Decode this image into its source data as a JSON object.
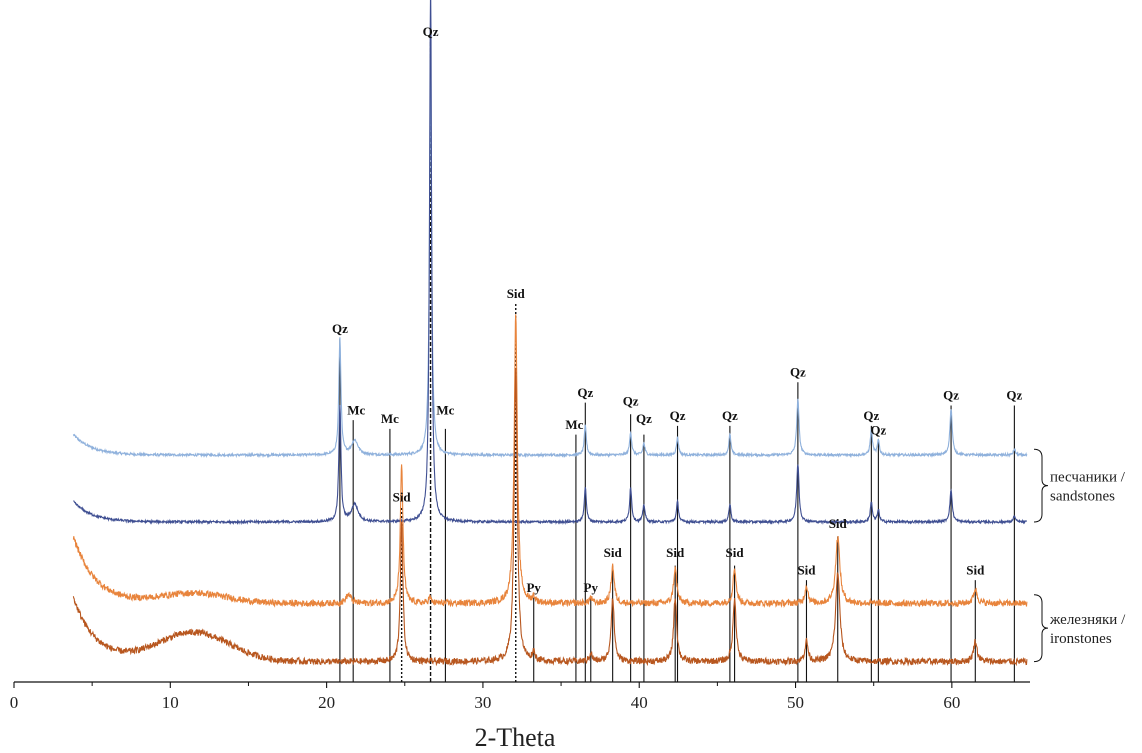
{
  "chart_data": {
    "type": "line",
    "title": "",
    "xlabel": "2-Theta",
    "ylabel": "",
    "xlim": [
      0,
      65
    ],
    "x_ticks": [
      0,
      10,
      20,
      30,
      40,
      50,
      60
    ],
    "x_tick_labels": [
      "0",
      "10",
      "20",
      "30",
      "40",
      "50",
      "60"
    ],
    "grid": false,
    "series": [
      {
        "color": "#8fb1dc",
        "baseline": 0.78,
        "hump": {
          "x0": 3.8,
          "amp": 0.07,
          "decay": 1.2
        },
        "peaks": [
          [
            20.85,
            0.4,
            0.08
          ],
          [
            21.8,
            0.05,
            0.25
          ],
          [
            26.65,
            1.4,
            0.08
          ],
          [
            36.55,
            0.1,
            0.08
          ],
          [
            39.45,
            0.08,
            0.08
          ],
          [
            40.3,
            0.04,
            0.08
          ],
          [
            42.45,
            0.06,
            0.08
          ],
          [
            45.8,
            0.07,
            0.08
          ],
          [
            50.15,
            0.19,
            0.09
          ],
          [
            54.85,
            0.09,
            0.08
          ],
          [
            55.3,
            0.05,
            0.08
          ],
          [
            59.95,
            0.16,
            0.09
          ],
          [
            64.0,
            0.02,
            0.08
          ]
        ],
        "noise": 0.004
      },
      {
        "color": "#3f4f92",
        "baseline": 0.55,
        "hump": {
          "x0": 3.8,
          "amp": 0.07,
          "decay": 1.2
        },
        "peaks": [
          [
            20.85,
            0.4,
            0.08
          ],
          [
            21.8,
            0.06,
            0.25
          ],
          [
            26.65,
            1.85,
            0.08
          ],
          [
            36.55,
            0.12,
            0.08
          ],
          [
            39.45,
            0.12,
            0.08
          ],
          [
            40.3,
            0.06,
            0.08
          ],
          [
            42.45,
            0.07,
            0.08
          ],
          [
            45.8,
            0.06,
            0.08
          ],
          [
            50.15,
            0.2,
            0.09
          ],
          [
            54.85,
            0.07,
            0.08
          ],
          [
            55.3,
            0.04,
            0.08
          ],
          [
            59.95,
            0.11,
            0.09
          ],
          [
            64.0,
            0.02,
            0.08
          ]
        ],
        "noise": 0.004
      },
      {
        "color": "#e8843c",
        "baseline": 0.27,
        "hump": {
          "x0": 3.8,
          "amp": 0.23,
          "decay": 1.4
        },
        "bump": {
          "center": 11.5,
          "amp": 0.035,
          "width": 3.0
        },
        "peaks": [
          [
            21.4,
            0.03,
            0.2
          ],
          [
            24.8,
            0.48,
            0.1
          ],
          [
            26.6,
            0.02,
            0.1
          ],
          [
            32.1,
            1.0,
            0.12
          ],
          [
            33.25,
            0.02,
            0.1
          ],
          [
            36.9,
            0.02,
            0.1
          ],
          [
            38.3,
            0.13,
            0.12
          ],
          [
            42.3,
            0.12,
            0.12
          ],
          [
            46.1,
            0.12,
            0.12
          ],
          [
            50.7,
            0.06,
            0.12
          ],
          [
            52.7,
            0.23,
            0.16
          ],
          [
            61.5,
            0.05,
            0.14
          ]
        ],
        "noise": 0.011
      },
      {
        "color": "#b8571f",
        "baseline": 0.07,
        "hump": {
          "x0": 3.8,
          "amp": 0.22,
          "decay": 1.4
        },
        "bump": {
          "center": 11.5,
          "amp": 0.1,
          "width": 3.2
        },
        "peaks": [
          [
            24.8,
            0.48,
            0.1
          ],
          [
            32.1,
            1.0,
            0.12
          ],
          [
            33.25,
            0.03,
            0.1
          ],
          [
            36.9,
            0.03,
            0.1
          ],
          [
            38.3,
            0.22,
            0.12
          ],
          [
            42.3,
            0.22,
            0.12
          ],
          [
            46.1,
            0.22,
            0.12
          ],
          [
            50.7,
            0.07,
            0.12
          ],
          [
            52.7,
            0.31,
            0.16
          ],
          [
            61.5,
            0.07,
            0.14
          ]
        ],
        "noise": 0.011
      }
    ],
    "reference_lines": [
      {
        "x": 20.85,
        "y_top": 1.18,
        "style": "solid"
      },
      {
        "x": 21.7,
        "y_top": 0.9,
        "style": "solid"
      },
      {
        "x": 24.05,
        "y_top": 0.87,
        "style": "solid"
      },
      {
        "x": 26.65,
        "y_top": 2.2,
        "style": "dashed"
      },
      {
        "x": 27.6,
        "y_top": 0.87,
        "style": "solid"
      },
      {
        "x": 35.95,
        "y_top": 0.85,
        "style": "solid"
      },
      {
        "x": 36.55,
        "y_top": 0.96,
        "style": "solid"
      },
      {
        "x": 39.45,
        "y_top": 0.92,
        "style": "solid"
      },
      {
        "x": 40.3,
        "y_top": 0.85,
        "style": "solid"
      },
      {
        "x": 42.45,
        "y_top": 0.88,
        "style": "solid"
      },
      {
        "x": 45.8,
        "y_top": 0.88,
        "style": "solid"
      },
      {
        "x": 50.15,
        "y_top": 1.03,
        "style": "solid"
      },
      {
        "x": 54.85,
        "y_top": 0.88,
        "style": "solid"
      },
      {
        "x": 55.3,
        "y_top": 0.83,
        "style": "solid"
      },
      {
        "x": 59.95,
        "y_top": 0.95,
        "style": "solid"
      },
      {
        "x": 64.0,
        "y_top": 0.95,
        "style": "solid"
      },
      {
        "x": 24.8,
        "y_top": 0.6,
        "style": "dotted"
      },
      {
        "x": 32.1,
        "y_top": 1.3,
        "style": "dotted"
      },
      {
        "x": 33.25,
        "y_top": 0.29,
        "style": "solid"
      },
      {
        "x": 36.9,
        "y_top": 0.29,
        "style": "solid"
      },
      {
        "x": 38.3,
        "y_top": 0.4,
        "style": "solid"
      },
      {
        "x": 42.3,
        "y_top": 0.4,
        "style": "solid"
      },
      {
        "x": 46.1,
        "y_top": 0.4,
        "style": "solid"
      },
      {
        "x": 50.7,
        "y_top": 0.35,
        "style": "solid"
      },
      {
        "x": 52.7,
        "y_top": 0.5,
        "style": "solid"
      },
      {
        "x": 61.5,
        "y_top": 0.35,
        "style": "solid"
      }
    ],
    "annotations": [
      {
        "text": "Qz",
        "x": 26.65,
        "y": 2.22
      },
      {
        "text": "Qz",
        "x": 20.85,
        "y": 1.2
      },
      {
        "text": "Mc",
        "x": 21.9,
        "y": 0.92
      },
      {
        "text": "Mc",
        "x": 24.05,
        "y": 0.89
      },
      {
        "text": "Mc",
        "x": 27.6,
        "y": 0.92
      },
      {
        "text": "Mc",
        "x": 35.85,
        "y": 0.87
      },
      {
        "text": "Qz",
        "x": 36.55,
        "y": 0.98
      },
      {
        "text": "Qz",
        "x": 39.45,
        "y": 0.95
      },
      {
        "text": "Qz",
        "x": 40.3,
        "y": 0.89
      },
      {
        "text": "Qz",
        "x": 42.45,
        "y": 0.9
      },
      {
        "text": "Qz",
        "x": 45.8,
        "y": 0.9
      },
      {
        "text": "Qz",
        "x": 50.15,
        "y": 1.05
      },
      {
        "text": "Qz",
        "x": 54.85,
        "y": 0.9
      },
      {
        "text": "Qz",
        "x": 55.3,
        "y": 0.85
      },
      {
        "text": "Qz",
        "x": 59.95,
        "y": 0.97
      },
      {
        "text": "Qz",
        "x": 64.0,
        "y": 0.97
      },
      {
        "text": "Sid",
        "x": 32.1,
        "y": 1.32
      },
      {
        "text": "Sid",
        "x": 24.8,
        "y": 0.62
      },
      {
        "text": "Py",
        "x": 33.25,
        "y": 0.31
      },
      {
        "text": "Py",
        "x": 36.9,
        "y": 0.31
      },
      {
        "text": "Sid",
        "x": 38.3,
        "y": 0.43
      },
      {
        "text": "Sid",
        "x": 42.3,
        "y": 0.43
      },
      {
        "text": "Sid",
        "x": 46.1,
        "y": 0.43
      },
      {
        "text": "Sid",
        "x": 50.7,
        "y": 0.37
      },
      {
        "text": "Sid",
        "x": 52.7,
        "y": 0.53
      },
      {
        "text": "Sid",
        "x": 61.5,
        "y": 0.37
      }
    ],
    "groups": [
      {
        "line1": "песчаники /",
        "line2": "sandstones",
        "y_from": 0.55,
        "y_to": 0.8
      },
      {
        "line1": "железняки /",
        "line2": "ironstones",
        "y_from": 0.07,
        "y_to": 0.3
      }
    ]
  }
}
